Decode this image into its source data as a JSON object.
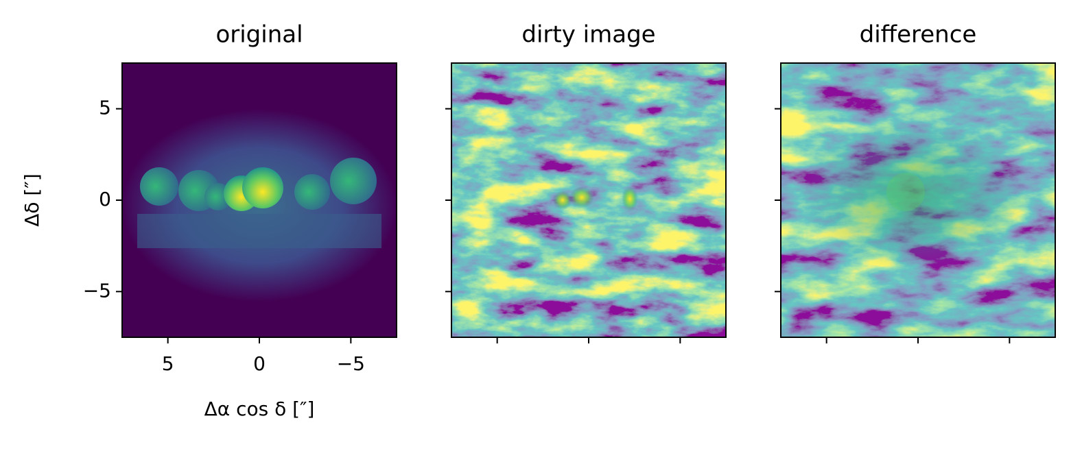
{
  "chart_data": [
    {
      "type": "image",
      "title": "original",
      "xlabel": "Δα cos δ [″]",
      "ylabel": "Δδ [″]",
      "xlim": [
        7.5,
        -7.5
      ],
      "ylim": [
        -7.5,
        7.5
      ],
      "xticks": [
        5,
        0,
        {
          "value": -5,
          "label": "−5"
        }
      ],
      "yticks": [
        {
          "value": -5,
          "label": "−5"
        },
        0,
        5
      ],
      "tick_labels": true
    },
    {
      "type": "image",
      "title": "dirty image",
      "xlim": [
        7.5,
        -7.5
      ],
      "ylim": [
        -7.5,
        7.5
      ],
      "xticks": [
        5,
        0,
        -5
      ],
      "yticks": [
        -5,
        0,
        5
      ],
      "tick_labels": false
    },
    {
      "type": "image",
      "title": "difference",
      "xlim": [
        7.5,
        -7.5
      ],
      "ylim": [
        -7.5,
        7.5
      ],
      "xticks": [
        5,
        0,
        -5
      ],
      "yticks": [
        -5,
        0,
        5
      ],
      "tick_labels": false
    }
  ]
}
